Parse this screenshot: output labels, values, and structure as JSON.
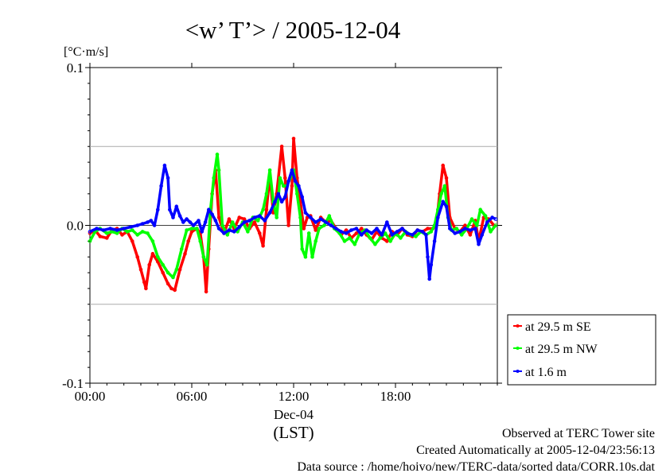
{
  "chart_data": {
    "type": "line",
    "title": "<w’ T’> / 2005-12-04",
    "ylabel": "[°C·m/s]",
    "ylim": [
      -0.1,
      0.1
    ],
    "y_ticks": [
      {
        "value": 0.1,
        "label": "0.1"
      },
      {
        "value": 0.0,
        "label": "0.0"
      },
      {
        "value": -0.1,
        "label": "-0.1"
      }
    ],
    "y_gridlines": [
      0.05,
      -0.05
    ],
    "xlim_hours": [
      0,
      24
    ],
    "x_ticks": [
      {
        "hour": 0,
        "label": "00:00"
      },
      {
        "hour": 6,
        "label": "06:00"
      },
      {
        "hour": 12,
        "label": "12:00"
      },
      {
        "hour": 18,
        "label": "18:00"
      }
    ],
    "x_date_label": "Dec-04",
    "x_tz_label": "(LST)",
    "legend_position": "right-bottom outside plot",
    "series": [
      {
        "name": "at 29.5 m SE",
        "color": "#ff0000",
        "points": [
          [
            0.0,
            -0.005
          ],
          [
            0.3,
            -0.003
          ],
          [
            0.6,
            -0.007
          ],
          [
            1.0,
            -0.008
          ],
          [
            1.3,
            -0.003
          ],
          [
            1.6,
            -0.002
          ],
          [
            1.9,
            -0.006
          ],
          [
            2.2,
            -0.004
          ],
          [
            2.5,
            -0.01
          ],
          [
            2.8,
            -0.02
          ],
          [
            3.0,
            -0.028
          ],
          [
            3.2,
            -0.036
          ],
          [
            3.3,
            -0.04
          ],
          [
            3.5,
            -0.025
          ],
          [
            3.7,
            -0.018
          ],
          [
            4.0,
            -0.023
          ],
          [
            4.3,
            -0.03
          ],
          [
            4.6,
            -0.037
          ],
          [
            4.8,
            -0.04
          ],
          [
            5.0,
            -0.041
          ],
          [
            5.3,
            -0.028
          ],
          [
            5.6,
            -0.018
          ],
          [
            5.8,
            -0.01
          ],
          [
            6.0,
            -0.004
          ],
          [
            6.3,
            -0.002
          ],
          [
            6.5,
            -0.005
          ],
          [
            6.7,
            -0.02
          ],
          [
            6.85,
            -0.042
          ],
          [
            7.0,
            -0.015
          ],
          [
            7.2,
            0.02
          ],
          [
            7.4,
            0.035
          ],
          [
            7.6,
            0.005
          ],
          [
            7.9,
            -0.005
          ],
          [
            8.2,
            0.004
          ],
          [
            8.5,
            -0.002
          ],
          [
            8.8,
            0.005
          ],
          [
            9.1,
            0.004
          ],
          [
            9.4,
            -0.002
          ],
          [
            9.7,
            0.002
          ],
          [
            10.0,
            -0.005
          ],
          [
            10.2,
            -0.013
          ],
          [
            10.4,
            0.01
          ],
          [
            10.6,
            0.032
          ],
          [
            10.8,
            0.008
          ],
          [
            11.0,
            0.02
          ],
          [
            11.3,
            0.05
          ],
          [
            11.5,
            0.03
          ],
          [
            11.7,
            0.0
          ],
          [
            11.9,
            0.025
          ],
          [
            12.0,
            0.055
          ],
          [
            12.2,
            0.03
          ],
          [
            12.4,
            0.015
          ],
          [
            12.6,
            -0.002
          ],
          [
            12.8,
            0.005
          ],
          [
            13.0,
            0.006
          ],
          [
            13.3,
            -0.003
          ],
          [
            13.6,
            0.005
          ],
          [
            13.9,
            0.002
          ],
          [
            14.2,
            0.003
          ],
          [
            14.5,
            -0.002
          ],
          [
            14.8,
            -0.006
          ],
          [
            15.1,
            -0.003
          ],
          [
            15.4,
            -0.008
          ],
          [
            15.7,
            -0.005
          ],
          [
            16.0,
            -0.002
          ],
          [
            16.3,
            -0.006
          ],
          [
            16.6,
            -0.009
          ],
          [
            16.9,
            -0.004
          ],
          [
            17.2,
            -0.008
          ],
          [
            17.5,
            -0.01
          ],
          [
            17.8,
            -0.004
          ],
          [
            18.1,
            -0.006
          ],
          [
            18.4,
            -0.002
          ],
          [
            18.7,
            -0.006
          ],
          [
            19.0,
            -0.007
          ],
          [
            19.3,
            -0.003
          ],
          [
            19.6,
            -0.004
          ],
          [
            19.9,
            -0.002
          ],
          [
            20.2,
            -0.002
          ],
          [
            20.4,
            0.0
          ],
          [
            20.6,
            0.02
          ],
          [
            20.8,
            0.038
          ],
          [
            21.0,
            0.03
          ],
          [
            21.2,
            0.005
          ],
          [
            21.5,
            -0.002
          ],
          [
            21.8,
            -0.004
          ],
          [
            22.1,
            0.0
          ],
          [
            22.4,
            -0.006
          ],
          [
            22.7,
            0.003
          ],
          [
            22.9,
            -0.01
          ],
          [
            23.2,
            0.005
          ],
          [
            23.5,
            0.004
          ],
          [
            23.8,
            0.0
          ]
        ]
      },
      {
        "name": "at 29.5 m NW",
        "color": "#00ff00",
        "points": [
          [
            0.0,
            -0.01
          ],
          [
            0.3,
            -0.004
          ],
          [
            0.6,
            -0.002
          ],
          [
            1.0,
            -0.005
          ],
          [
            1.3,
            -0.004
          ],
          [
            1.6,
            -0.005
          ],
          [
            1.9,
            -0.002
          ],
          [
            2.2,
            -0.004
          ],
          [
            2.5,
            -0.003
          ],
          [
            2.8,
            -0.006
          ],
          [
            3.1,
            -0.004
          ],
          [
            3.4,
            -0.005
          ],
          [
            3.7,
            -0.01
          ],
          [
            4.0,
            -0.02
          ],
          [
            4.3,
            -0.025
          ],
          [
            4.6,
            -0.03
          ],
          [
            4.9,
            -0.033
          ],
          [
            5.1,
            -0.028
          ],
          [
            5.4,
            -0.015
          ],
          [
            5.7,
            -0.003
          ],
          [
            6.0,
            -0.002
          ],
          [
            6.3,
            -0.002
          ],
          [
            6.5,
            -0.01
          ],
          [
            6.7,
            -0.02
          ],
          [
            6.9,
            -0.025
          ],
          [
            7.1,
            0.01
          ],
          [
            7.3,
            0.03
          ],
          [
            7.5,
            0.045
          ],
          [
            7.6,
            0.035
          ],
          [
            7.8,
            0.0
          ],
          [
            8.1,
            -0.006
          ],
          [
            8.4,
            0.002
          ],
          [
            8.7,
            -0.004
          ],
          [
            9.0,
            0.002
          ],
          [
            9.3,
            -0.004
          ],
          [
            9.6,
            0.005
          ],
          [
            9.9,
            0.003
          ],
          [
            10.2,
            0.01
          ],
          [
            10.4,
            0.02
          ],
          [
            10.6,
            0.035
          ],
          [
            10.8,
            0.015
          ],
          [
            11.0,
            0.005
          ],
          [
            11.2,
            0.03
          ],
          [
            11.4,
            0.025
          ],
          [
            11.6,
            0.025
          ],
          [
            11.8,
            0.03
          ],
          [
            12.0,
            0.035
          ],
          [
            12.2,
            0.02
          ],
          [
            12.4,
            0.005
          ],
          [
            12.5,
            -0.015
          ],
          [
            12.7,
            -0.02
          ],
          [
            12.9,
            -0.005
          ],
          [
            13.1,
            -0.02
          ],
          [
            13.3,
            -0.01
          ],
          [
            13.5,
            -0.002
          ],
          [
            13.8,
            0.0
          ],
          [
            14.1,
            0.006
          ],
          [
            14.4,
            -0.002
          ],
          [
            14.7,
            -0.005
          ],
          [
            15.0,
            -0.01
          ],
          [
            15.3,
            -0.008
          ],
          [
            15.6,
            -0.012
          ],
          [
            15.9,
            -0.005
          ],
          [
            16.2,
            -0.003
          ],
          [
            16.5,
            -0.008
          ],
          [
            16.8,
            -0.012
          ],
          [
            17.1,
            -0.008
          ],
          [
            17.4,
            -0.005
          ],
          [
            17.7,
            -0.01
          ],
          [
            18.0,
            -0.005
          ],
          [
            18.3,
            -0.008
          ],
          [
            18.6,
            -0.004
          ],
          [
            18.9,
            -0.006
          ],
          [
            19.2,
            -0.007
          ],
          [
            19.5,
            -0.004
          ],
          [
            19.8,
            -0.006
          ],
          [
            20.1,
            -0.004
          ],
          [
            20.3,
            0.0
          ],
          [
            20.5,
            0.01
          ],
          [
            20.7,
            0.02
          ],
          [
            20.9,
            0.025
          ],
          [
            21.1,
            0.005
          ],
          [
            21.3,
            -0.003
          ],
          [
            21.6,
            -0.002
          ],
          [
            21.9,
            -0.006
          ],
          [
            22.2,
            -0.002
          ],
          [
            22.5,
            0.004
          ],
          [
            22.8,
            0.0
          ],
          [
            23.0,
            0.01
          ],
          [
            23.3,
            0.006
          ],
          [
            23.6,
            -0.004
          ],
          [
            23.9,
            0.0
          ]
        ]
      },
      {
        "name": "at 1.6 m",
        "color": "#0000ff",
        "points": [
          [
            0.0,
            -0.004
          ],
          [
            0.4,
            -0.002
          ],
          [
            0.8,
            -0.003
          ],
          [
            1.2,
            -0.002
          ],
          [
            1.6,
            -0.003
          ],
          [
            2.0,
            -0.002
          ],
          [
            2.4,
            -0.001
          ],
          [
            2.8,
            0.0
          ],
          [
            3.1,
            0.001
          ],
          [
            3.4,
            0.002
          ],
          [
            3.6,
            0.003
          ],
          [
            3.8,
            0.0
          ],
          [
            4.0,
            0.01
          ],
          [
            4.2,
            0.025
          ],
          [
            4.4,
            0.038
          ],
          [
            4.6,
            0.03
          ],
          [
            4.7,
            0.01
          ],
          [
            4.9,
            0.005
          ],
          [
            5.1,
            0.012
          ],
          [
            5.3,
            0.006
          ],
          [
            5.5,
            0.002
          ],
          [
            5.7,
            0.004
          ],
          [
            5.9,
            0.002
          ],
          [
            6.1,
            0.0
          ],
          [
            6.4,
            0.003
          ],
          [
            6.6,
            -0.004
          ],
          [
            6.8,
            0.002
          ],
          [
            7.0,
            0.01
          ],
          [
            7.2,
            0.007
          ],
          [
            7.4,
            0.003
          ],
          [
            7.6,
            -0.002
          ],
          [
            7.9,
            -0.005
          ],
          [
            8.2,
            -0.003
          ],
          [
            8.5,
            -0.004
          ],
          [
            8.8,
            -0.001
          ],
          [
            9.1,
            0.002
          ],
          [
            9.4,
            0.003
          ],
          [
            9.7,
            0.005
          ],
          [
            10.0,
            0.006
          ],
          [
            10.3,
            0.003
          ],
          [
            10.6,
            0.008
          ],
          [
            10.9,
            0.015
          ],
          [
            11.1,
            0.02
          ],
          [
            11.3,
            0.015
          ],
          [
            11.5,
            0.018
          ],
          [
            11.7,
            0.028
          ],
          [
            11.9,
            0.035
          ],
          [
            12.1,
            0.028
          ],
          [
            12.3,
            0.025
          ],
          [
            12.5,
            0.018
          ],
          [
            12.7,
            0.008
          ],
          [
            13.0,
            0.005
          ],
          [
            13.3,
            0.002
          ],
          [
            13.6,
            0.004
          ],
          [
            13.9,
            0.002
          ],
          [
            14.2,
            0.0
          ],
          [
            14.5,
            -0.002
          ],
          [
            14.8,
            -0.004
          ],
          [
            15.1,
            -0.005
          ],
          [
            15.4,
            -0.003
          ],
          [
            15.7,
            -0.002
          ],
          [
            16.0,
            -0.006
          ],
          [
            16.3,
            -0.003
          ],
          [
            16.6,
            -0.005
          ],
          [
            16.9,
            -0.002
          ],
          [
            17.2,
            -0.006
          ],
          [
            17.5,
            0.002
          ],
          [
            17.8,
            -0.006
          ],
          [
            18.1,
            -0.004
          ],
          [
            18.4,
            -0.002
          ],
          [
            18.7,
            -0.005
          ],
          [
            19.0,
            -0.006
          ],
          [
            19.3,
            -0.003
          ],
          [
            19.6,
            -0.004
          ],
          [
            19.8,
            -0.006
          ],
          [
            19.9,
            -0.02
          ],
          [
            20.0,
            -0.034
          ],
          [
            20.1,
            -0.025
          ],
          [
            20.3,
            -0.01
          ],
          [
            20.5,
            0.005
          ],
          [
            20.8,
            0.015
          ],
          [
            21.0,
            0.012
          ],
          [
            21.2,
            -0.002
          ],
          [
            21.5,
            -0.005
          ],
          [
            21.8,
            -0.004
          ],
          [
            22.1,
            -0.002
          ],
          [
            22.4,
            -0.003
          ],
          [
            22.7,
            -0.002
          ],
          [
            22.9,
            -0.012
          ],
          [
            23.1,
            -0.006
          ],
          [
            23.4,
            0.002
          ],
          [
            23.7,
            0.005
          ],
          [
            23.9,
            0.004
          ]
        ]
      }
    ]
  },
  "footer": {
    "line1": "Observed at TERC Tower site",
    "line2": "Created Automatically at 2005-12-04/23:56:13",
    "line3": "Data source : /home/hoivo/new/TERC-data/sorted data/CORR.10s.dat"
  }
}
